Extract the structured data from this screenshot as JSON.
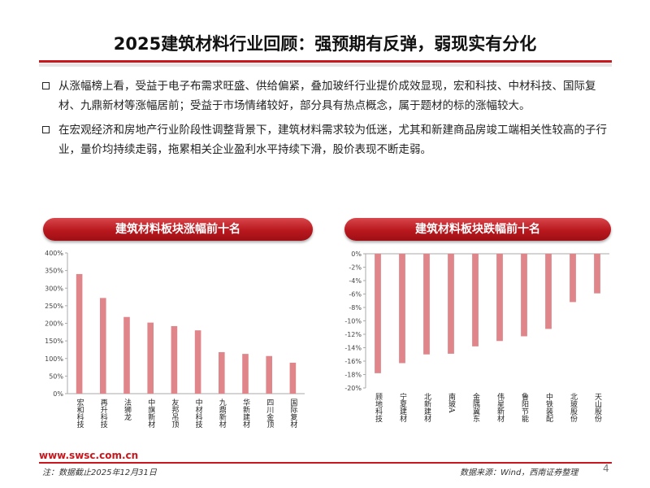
{
  "title": "2025建筑材料行业回顾：强预期有反弹，弱现实有分化",
  "bullets": [
    "从涨幅榜上看，受益于电子布需求旺盛、供给偏紧，叠加玻纤行业提价成效显现，宏和科技、中材科技、国际复材、九鼎新材等涨幅居前；受益于市场情绪较好，部分具有热点概念，属于题材的标的涨幅较大。",
    "在宏观经济和房地产行业阶段性调整背景下，建筑材料需求较为低迷，尤其和新建商品房竣工端相关性较高的子行业，量价均持续走弱，拖累相关企业盈利水平持续下滑，股价表现不断走弱。"
  ],
  "chart_data": [
    {
      "type": "bar",
      "title": "建筑材料板块涨幅前十名",
      "categories": [
        "宏和科技",
        "再升科技",
        "法狮龙",
        "中旗新材",
        "友邦吊顶",
        "中材科技",
        "九鼎新材",
        "华新建材",
        "四川金顶",
        "国际复材"
      ],
      "values": [
        340,
        272,
        218,
        202,
        192,
        180,
        118,
        113,
        107,
        88
      ],
      "unit": "%",
      "ylim": [
        0,
        400
      ],
      "yticks": [
        0,
        50,
        100,
        150,
        200,
        250,
        300,
        350,
        400
      ],
      "ytick_labels": [
        "0%",
        "50%",
        "100%",
        "150%",
        "200%",
        "250%",
        "300%",
        "350%",
        "400%"
      ],
      "color": "#e0868a"
    },
    {
      "type": "bar",
      "title": "建筑材料板块跌幅前十名",
      "categories": [
        "顾地科技",
        "宁夏建材",
        "北新建材",
        "南玻A",
        "金隅冀东",
        "伟星新材",
        "鲁阳节能",
        "中铁装配",
        "北玻股份",
        "天山股份"
      ],
      "values": [
        -17.8,
        -16.3,
        -15.0,
        -14.9,
        -13.8,
        -13.0,
        -12.3,
        -11.2,
        -7.2,
        -5.9
      ],
      "unit": "%",
      "ylim": [
        -20,
        0
      ],
      "yticks": [
        0,
        -2,
        -4,
        -6,
        -8,
        -10,
        -12,
        -14,
        -16,
        -18,
        -20
      ],
      "ytick_labels": [
        "0%",
        "-2%",
        "-4%",
        "-6%",
        "-8%",
        "-10%",
        "-12%",
        "-14%",
        "-16%",
        "-18%",
        "-20%"
      ],
      "color": "#e0868a"
    }
  ],
  "footer": {
    "site": "www.swsc.com.cn",
    "note": "注：数据截止2025年12月31日",
    "source": "数据来源：Wind，西南证券整理",
    "page": "4"
  }
}
